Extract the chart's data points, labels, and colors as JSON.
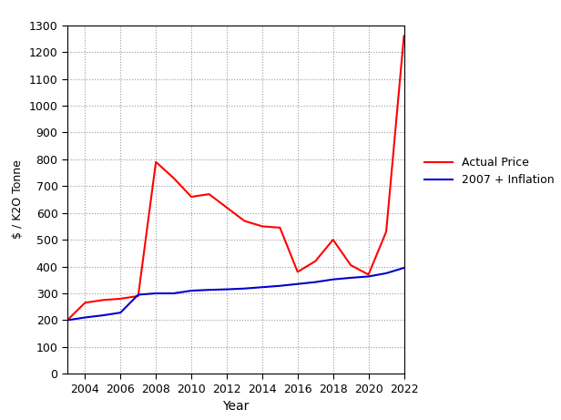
{
  "years": [
    2003,
    2004,
    2005,
    2006,
    2007,
    2008,
    2009,
    2010,
    2011,
    2012,
    2013,
    2014,
    2015,
    2016,
    2017,
    2018,
    2019,
    2020,
    2021,
    2022
  ],
  "actual_price": [
    200,
    265,
    275,
    280,
    290,
    790,
    730,
    660,
    670,
    620,
    570,
    550,
    545,
    380,
    420,
    500,
    405,
    370,
    530,
    1260
  ],
  "inflation_price": [
    200,
    210,
    218,
    228,
    295,
    300,
    300,
    310,
    313,
    315,
    318,
    323,
    328,
    335,
    342,
    352,
    358,
    363,
    375,
    395
  ],
  "actual_color": "#ff0000",
  "inflation_color": "#0000cc",
  "xlabel": "Year",
  "ylabel": "$ / K2O Tonne",
  "ylim": [
    0,
    1300
  ],
  "xlim": [
    2003,
    2022
  ],
  "yticks": [
    0,
    100,
    200,
    300,
    400,
    500,
    600,
    700,
    800,
    900,
    1000,
    1100,
    1200,
    1300
  ],
  "xticks": [
    2004,
    2006,
    2008,
    2010,
    2012,
    2014,
    2016,
    2018,
    2020,
    2022
  ],
  "legend_labels": [
    "Actual Price",
    "2007 + Inflation"
  ],
  "line_width": 1.5,
  "background_color": "#ffffff",
  "grid_color": "#999999"
}
